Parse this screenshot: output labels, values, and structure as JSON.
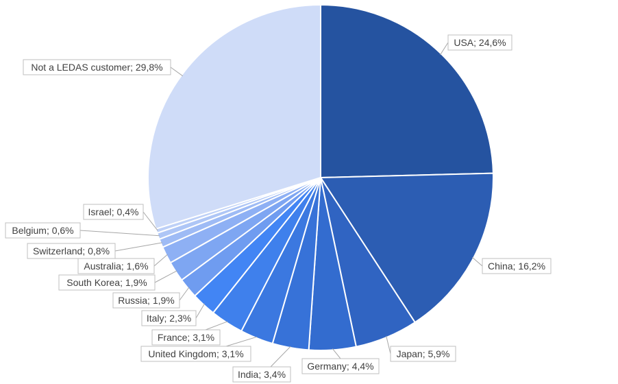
{
  "chart_data": {
    "type": "pie",
    "title": "",
    "label_separator": "; ",
    "slices": [
      {
        "label": "USA",
        "value_text": "24,6%",
        "value": 24.6,
        "color": "#2553A0"
      },
      {
        "label": "China",
        "value_text": "16,2%",
        "value": 16.2,
        "color": "#2C5DB3"
      },
      {
        "label": "Japan",
        "value_text": "5,9%",
        "value": 5.9,
        "color": "#3064C2"
      },
      {
        "label": "Germany",
        "value_text": "4,4%",
        "value": 4.4,
        "color": "#336CCF"
      },
      {
        "label": "India",
        "value_text": "3,4%",
        "value": 3.4,
        "color": "#3772D8"
      },
      {
        "label": "United Kingdom",
        "value_text": "3,1%",
        "value": 3.1,
        "color": "#3B78E0"
      },
      {
        "label": "France",
        "value_text": "3,1%",
        "value": 3.1,
        "color": "#3F80EC"
      },
      {
        "label": "Italy",
        "value_text": "2,3%",
        "value": 2.3,
        "color": "#4285F4"
      },
      {
        "label": "Russia",
        "value_text": "1,9%",
        "value": 1.9,
        "color": "#6F9CF0"
      },
      {
        "label": "South Korea",
        "value_text": "1,9%",
        "value": 1.9,
        "color": "#7EA6F2"
      },
      {
        "label": "Australia",
        "value_text": "1,6%",
        "value": 1.6,
        "color": "#8EB0F4"
      },
      {
        "label": "Switzerland",
        "value_text": "0,8%",
        "value": 0.8,
        "color": "#9EBBF5"
      },
      {
        "label": "Belgium",
        "value_text": "0,6%",
        "value": 0.6,
        "color": "#AEC6F6"
      },
      {
        "label": "Israel",
        "value_text": "0,4%",
        "value": 0.4,
        "color": "#BDD0F7"
      },
      {
        "label": "Not a LEDAS customer",
        "value_text": "29,8%",
        "value": 29.8,
        "color": "#CFDCF8"
      }
    ]
  }
}
